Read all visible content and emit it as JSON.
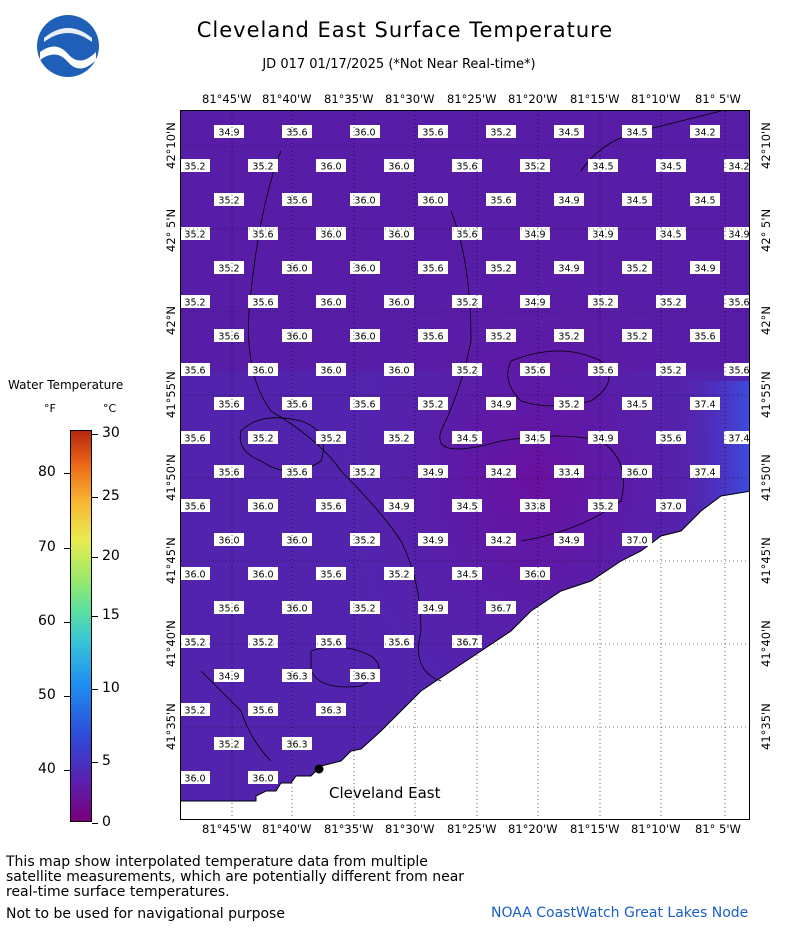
{
  "title": "Cleveland East Surface Temperature",
  "subtitle": "JD 017 01/17/2025 (*Not Near Real-time*)",
  "logo_text": "NOAA",
  "longitude_labels": [
    "81°45'W",
    "81°40'W",
    "81°35'W",
    "81°30'W",
    "81°25'W",
    "81°20'W",
    "81°15'W",
    "81°10'W",
    "81° 5'W"
  ],
  "latitude_labels": [
    "42°10'N",
    "42° 5'N",
    "42°N",
    "41°55'N",
    "41°50'N",
    "41°45'N",
    "41°40'N",
    "41°35'N"
  ],
  "station_label": "Cleveland East",
  "temperature_rows": [
    [
      "34.9",
      "35.6",
      "36.0",
      "35.6",
      "35.2",
      "34.5",
      "34.5",
      "34.2"
    ],
    [
      "35.2",
      "35.2",
      "36.0",
      "36.0",
      "35.6",
      "35.2",
      "34.5",
      "34.5",
      "34.2"
    ],
    [
      "35.2",
      "35.6",
      "36.0",
      "36.0",
      "35.6",
      "34.9",
      "34.5",
      "34.5"
    ],
    [
      "35.2",
      "35.6",
      "36.0",
      "36.0",
      "35.6",
      "34.9",
      "34.9",
      "34.5",
      "34.9"
    ],
    [
      "35.2",
      "36.0",
      "36.0",
      "35.6",
      "35.2",
      "34.9",
      "35.2",
      "34.9"
    ],
    [
      "35.2",
      "35.6",
      "36.0",
      "36.0",
      "35.2",
      "34.9",
      "35.2",
      "35.2",
      "35.6"
    ],
    [
      "35.6",
      "36.0",
      "36.0",
      "35.6",
      "35.2",
      "35.2",
      "35.2",
      "35.6"
    ],
    [
      "35.6",
      "36.0",
      "36.0",
      "36.0",
      "35.2",
      "35.6",
      "35.6",
      "35.2",
      "35.6"
    ],
    [
      "35.6",
      "35.6",
      "35.6",
      "35.2",
      "34.9",
      "35.2",
      "34.5",
      "37.4"
    ],
    [
      "35.6",
      "35.2",
      "35.2",
      "35.2",
      "34.5",
      "34.5",
      "34.9",
      "35.6",
      "37.4"
    ],
    [
      "35.6",
      "35.6",
      "35.2",
      "34.9",
      "34.2",
      "33.4",
      "36.0",
      "37.4"
    ],
    [
      "35.6",
      "36.0",
      "35.6",
      "34.9",
      "34.5",
      "33.8",
      "35.2",
      "37.0"
    ],
    [
      "36.0",
      "36.0",
      "35.2",
      "34.9",
      "34.2",
      "34.9",
      "37.0"
    ],
    [
      "36.0",
      "36.0",
      "35.6",
      "35.2",
      "34.5",
      "36.0"
    ],
    [
      "35.6",
      "36.0",
      "35.2",
      "34.9",
      "36.7"
    ],
    [
      "35.2",
      "35.2",
      "35.6",
      "35.6",
      "36.7"
    ],
    [
      "34.9",
      "36.3",
      "36.3"
    ],
    [
      "35.2",
      "35.6",
      "36.3"
    ],
    [
      "35.2",
      "36.3"
    ],
    [
      "36.0",
      "36.0"
    ]
  ],
  "legend": {
    "title": "Water Temperature",
    "unit_f": "°F",
    "unit_c": "°C",
    "f_ticks": [
      "80",
      "70",
      "60",
      "50",
      "40"
    ],
    "c_ticks": [
      "30",
      "25",
      "20",
      "15",
      "10",
      "5",
      "0"
    ]
  },
  "note_text": "This map show interpolated temperature data from multiple satellite measurements, which are potentially different from near real-time surface temperatures.",
  "nav_warning": "Not to be used for navigational purpose",
  "credit": "NOAA CoastWatch Great Lakes Node",
  "colors": {
    "water_dark": "#5a1fa8",
    "water_light": "#4a3ad8",
    "land": "#ffffff",
    "credit": "#1a5fc8"
  }
}
